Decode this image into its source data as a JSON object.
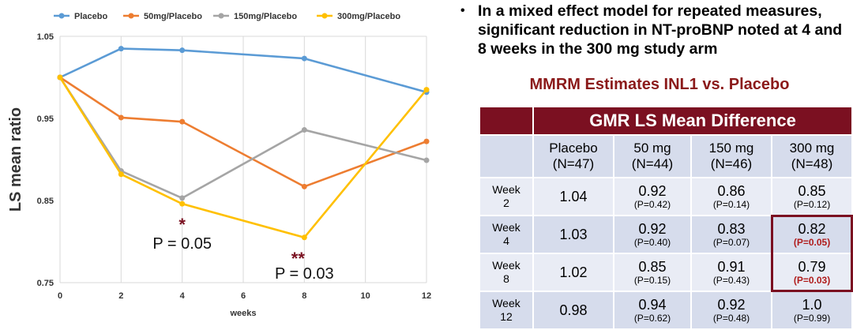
{
  "chart_data": {
    "type": "line",
    "title": "",
    "xlabel": "weeks",
    "ylabel": "LS mean ratio",
    "x": [
      0,
      2,
      4,
      8,
      12
    ],
    "xticks": [
      0,
      2,
      4,
      6,
      8,
      10,
      12
    ],
    "yticks": [
      "0.75",
      "0.85",
      "0.95",
      "1.05"
    ],
    "xlim": [
      0,
      12
    ],
    "ylim": [
      0.75,
      1.05
    ],
    "grid": "vertical",
    "legend_position": "top",
    "series": [
      {
        "name": "Placebo",
        "color": "#5b9bd5",
        "values": [
          1.0,
          1.035,
          1.033,
          1.023,
          0.982
        ]
      },
      {
        "name": "50mg/Placebo",
        "color": "#ed7d31",
        "values": [
          1.0,
          0.951,
          0.946,
          0.867,
          0.922
        ]
      },
      {
        "name": "150mg/Placebo",
        "color": "#a5a5a5",
        "values": [
          1.0,
          0.886,
          0.853,
          0.936,
          0.899
        ]
      },
      {
        "name": "300mg/Placebo",
        "color": "#ffc000",
        "values": [
          1.0,
          0.882,
          0.846,
          0.805,
          0.985
        ]
      }
    ],
    "annotations": [
      {
        "star": "*",
        "text": "P = 0.05",
        "x": 4,
        "y": 0.846
      },
      {
        "star": "**",
        "text": "P = 0.03",
        "x": 8,
        "y": 0.805
      }
    ]
  },
  "bullet": "In a mixed effect model for repeated measures, significant reduction in NT-proBNP noted at 4 and 8 weeks in the 300 mg study arm",
  "table": {
    "title": "MMRM Estimates INL1 vs. Placebo",
    "header": "GMR LS Mean Difference",
    "columns": [
      {
        "name": "Placebo",
        "n": "(N=47)"
      },
      {
        "name": "50 mg",
        "n": "(N=44)"
      },
      {
        "name": "150 mg",
        "n": "(N=46)"
      },
      {
        "name": "300 mg",
        "n": "(N=48)"
      }
    ],
    "rows": [
      {
        "week": "Week",
        "num": "2",
        "placebo": "1.04",
        "cells": [
          {
            "v": "0.92",
            "p": "(P=0.42)"
          },
          {
            "v": "0.86",
            "p": "(P=0.14)"
          },
          {
            "v": "0.85",
            "p": "(P=0.12)"
          }
        ]
      },
      {
        "week": "Week",
        "num": "4",
        "placebo": "1.03",
        "cells": [
          {
            "v": "0.92",
            "p": "(P=0.40)"
          },
          {
            "v": "0.83",
            "p": "(P=0.07)"
          },
          {
            "v": "0.82",
            "p": "(P=0.05)"
          }
        ]
      },
      {
        "week": "Week",
        "num": "8",
        "placebo": "1.02",
        "cells": [
          {
            "v": "0.85",
            "p": "(P=0.15)"
          },
          {
            "v": "0.91",
            "p": "(P=0.43)"
          },
          {
            "v": "0.79",
            "p": "(P=0.03)"
          }
        ]
      },
      {
        "week": "Week",
        "num": "12",
        "placebo": "0.98",
        "cells": [
          {
            "v": "0.94",
            "p": "(P=0.62)"
          },
          {
            "v": "0.92",
            "p": "(P=0.48)"
          },
          {
            "v": "1.0",
            "p": "(P=0.99)"
          }
        ]
      }
    ]
  }
}
